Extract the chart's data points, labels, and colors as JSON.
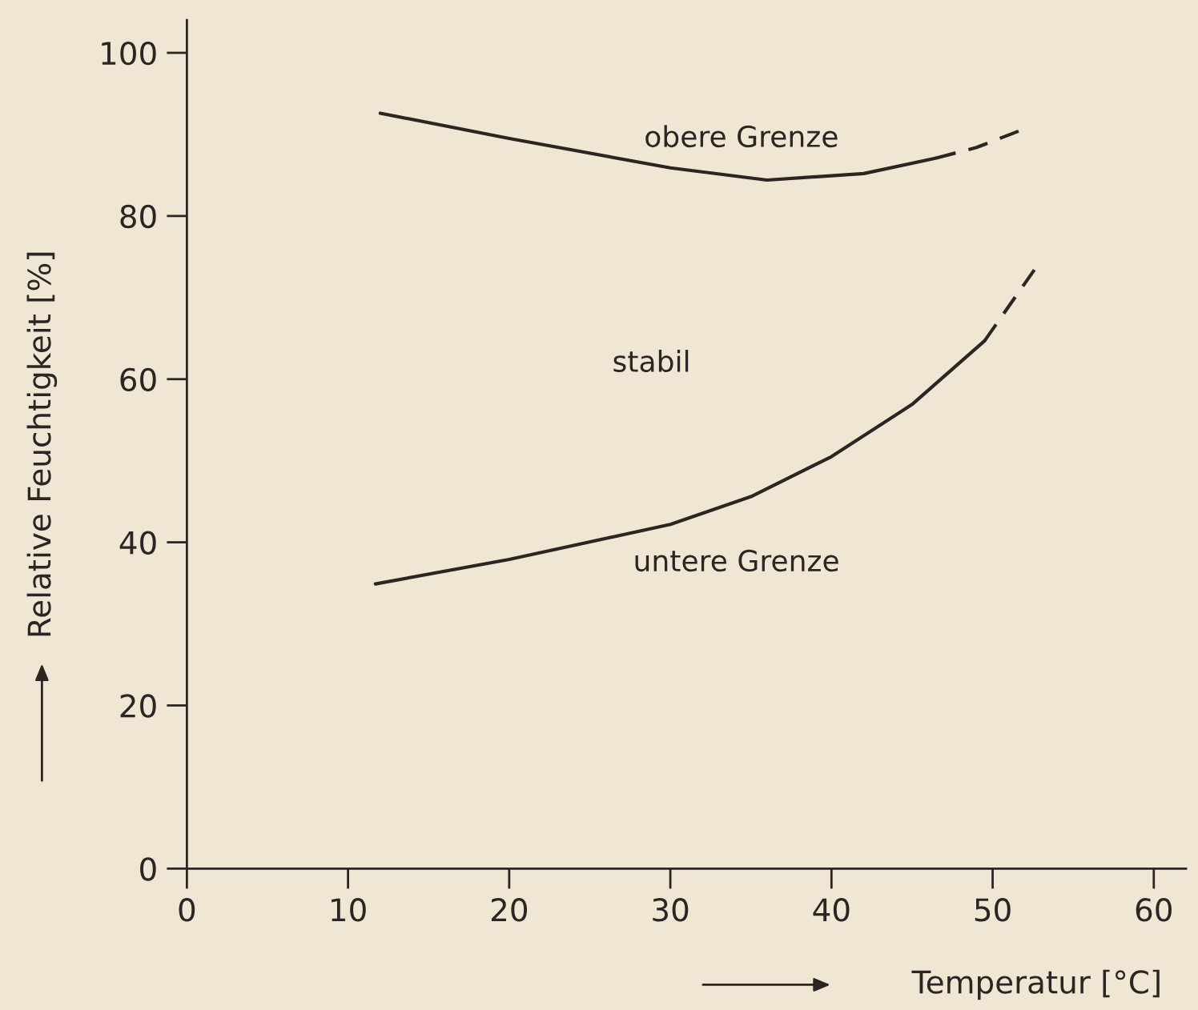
{
  "chart_data": {
    "type": "line",
    "xlabel": "Temperatur [°C]",
    "ylabel": "Relative Feuchtigkeit [%]",
    "xlim": [
      0,
      62
    ],
    "ylim": [
      0,
      104
    ],
    "xticks": [
      0,
      10,
      20,
      30,
      40,
      50,
      60
    ],
    "yticks": [
      0,
      20,
      40,
      60,
      80,
      100
    ],
    "grid": false,
    "legend": false,
    "series": [
      {
        "color": "#2b2622",
        "line_style": "solid",
        "x": [
          12,
          20,
          30,
          36,
          42,
          46.5
        ],
        "values": [
          92.6,
          89.5,
          85.9,
          84.4,
          85.2,
          87.1
        ]
      },
      {
        "color": "#2b2622",
        "line_style": "dashed",
        "x": [
          46.5,
          49,
          52
        ],
        "values": [
          87.1,
          88.4,
          90.7
        ]
      },
      {
        "color": "#2b2622",
        "line_style": "solid",
        "x": [
          11.7,
          20,
          30,
          35,
          40,
          45,
          49.5
        ],
        "values": [
          34.9,
          37.9,
          42.2,
          45.6,
          50.5,
          56.9,
          64.7
        ]
      },
      {
        "color": "#2b2622",
        "line_style": "dashed",
        "x": [
          49.5,
          52.8
        ],
        "values": [
          64.7,
          74
        ]
      }
    ],
    "annotations": [
      "obere Grenze",
      "stabil",
      "untere Grenze"
    ]
  }
}
